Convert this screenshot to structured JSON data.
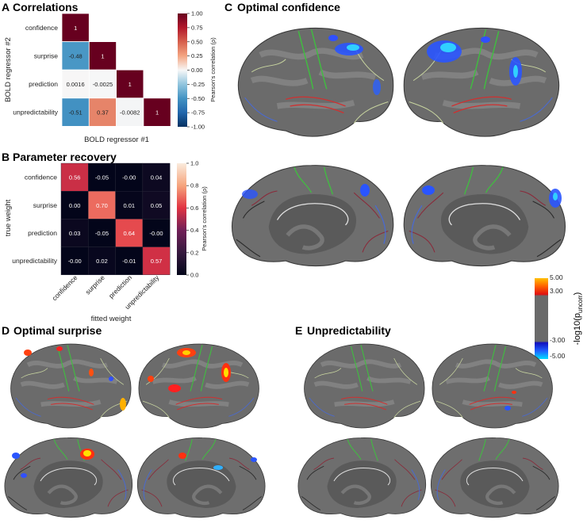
{
  "panels": {
    "A": {
      "letter": "A",
      "title": "Correlations"
    },
    "B": {
      "letter": "B",
      "title": "Parameter recovery"
    },
    "C": {
      "letter": "C",
      "title": "Optimal confidence"
    },
    "D": {
      "letter": "D",
      "title": "Optimal surprise"
    },
    "E": {
      "letter": "E",
      "title": "Unpredictability"
    }
  },
  "chart_data": [
    {
      "type": "heatmap",
      "title": "Correlations",
      "xlabel": "BOLD regressor #1",
      "ylabel": "BOLD regressor #2",
      "row_labels": [
        "confidence",
        "surprise",
        "prediction",
        "unpredictability"
      ],
      "cells": [
        [
          "1"
        ],
        [
          "-0.48",
          "1"
        ],
        [
          "0.0016",
          "-0.0025",
          "1"
        ],
        [
          "-0.51",
          "0.37",
          "-0.0082",
          "1"
        ]
      ],
      "colorbar": {
        "label": "Pearson's correlation (ρ)",
        "range": [
          -1,
          1
        ],
        "ticks": [
          "1.00",
          "0.75",
          "0.50",
          "0.25",
          "0.00",
          "-0.25",
          "-0.50",
          "-0.75",
          "-1.00"
        ]
      }
    },
    {
      "type": "heatmap",
      "title": "Parameter recovery",
      "xlabel": "fitted weight",
      "ylabel": "true weight",
      "row_labels": [
        "confidence",
        "surprise",
        "prediction",
        "unpredictability"
      ],
      "col_labels": [
        "confidence",
        "surprise",
        "prediction",
        "unpredictability"
      ],
      "cells": [
        [
          "0.56",
          "-0.05",
          "-0.00",
          "0.04"
        ],
        [
          "0.00",
          "0.70",
          "0.01",
          "0.05"
        ],
        [
          "0.03",
          "-0.05",
          "0.64",
          "-0.00"
        ],
        [
          "-0.00",
          "0.02",
          "-0.01",
          "0.57"
        ]
      ],
      "colorbar": {
        "label": "Pearson's correlation (ρ)",
        "range": [
          0,
          1
        ],
        "ticks": [
          "1.0",
          "0.8",
          "0.6",
          "0.4",
          "0.2",
          "0.0"
        ]
      }
    }
  ],
  "brain_colorbar": {
    "label_main": "-log10(p",
    "label_sub": "uncorr",
    "label_end": ")",
    "ticks": [
      "5.00",
      "3.00",
      "-3.00",
      "-5.00"
    ]
  }
}
